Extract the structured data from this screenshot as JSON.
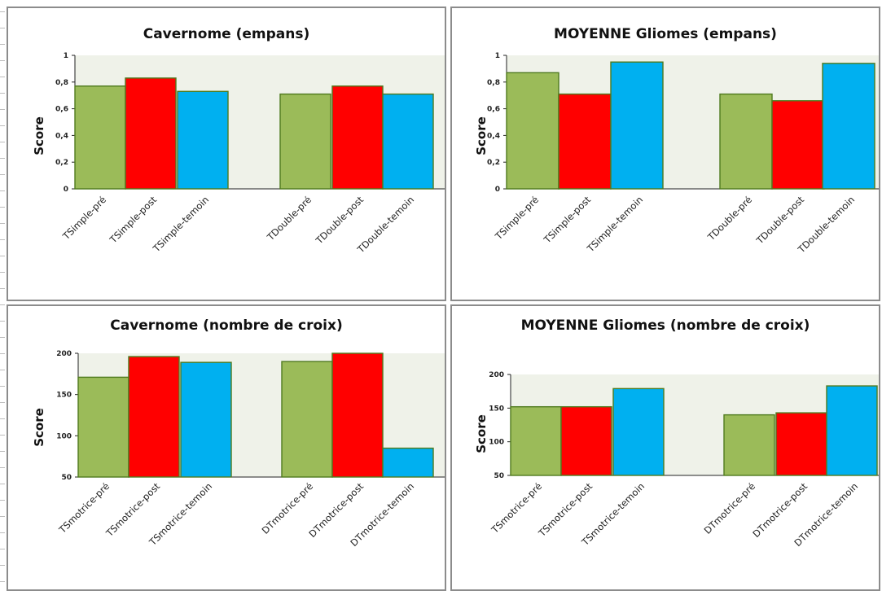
{
  "palette": {
    "pre": "#9bbb59",
    "post": "#ff0000",
    "temoin": "#00b0f0",
    "plot_bg": "#eff2e9",
    "bar_outline": "#4f7a1e"
  },
  "charts": [
    {
      "id": "c1",
      "chart_data": {
        "type": "bar",
        "title": "Cavernome (empans)",
        "ylabel": "Score",
        "ylim": [
          0,
          1
        ],
        "yticks": [
          "0",
          "0,2",
          "0,4",
          "0,6",
          "0,8",
          "1"
        ],
        "categories": [
          "TSimple-pré",
          "TSimple-post",
          "TSimple-temoin",
          "TDouble-pré",
          "TDouble-post",
          "TDouble-temoin"
        ],
        "values": [
          0.77,
          0.83,
          0.73,
          0.71,
          0.77,
          0.71
        ],
        "colors": [
          "pre",
          "post",
          "temoin",
          "pre",
          "post",
          "temoin"
        ]
      }
    },
    {
      "id": "c2",
      "chart_data": {
        "type": "bar",
        "title": "MOYENNE Gliomes (empans)",
        "ylabel": "Score",
        "ylim": [
          0,
          1
        ],
        "yticks": [
          "0",
          "0,2",
          "0,4",
          "0,6",
          "0,8",
          "1"
        ],
        "categories": [
          "TSimple-pré",
          "TSimple-post",
          "TSimple-temoin",
          "TDouble-pré",
          "TDouble-post",
          "TDouble-temoin"
        ],
        "values": [
          0.87,
          0.71,
          0.95,
          0.71,
          0.66,
          0.94
        ],
        "colors": [
          "pre",
          "post",
          "temoin",
          "pre",
          "post",
          "temoin"
        ]
      }
    },
    {
      "id": "c3",
      "chart_data": {
        "type": "bar",
        "title": "Cavernome (nombre de croix)",
        "ylabel": "Score",
        "ylim": [
          50,
          200
        ],
        "yticks": [
          "50",
          "100",
          "150",
          "200"
        ],
        "categories": [
          "TSmotrice-pré",
          "TSmotrice-post",
          "TSmotrice-temoin",
          "DTmotrice-pré",
          "DTmotrice-post",
          "DTmotrice-temoin"
        ],
        "values": [
          171,
          196,
          189,
          190,
          200,
          85
        ],
        "colors": [
          "pre",
          "post",
          "temoin",
          "pre",
          "post",
          "temoin"
        ]
      }
    },
    {
      "id": "c4",
      "chart_data": {
        "type": "bar",
        "title": "MOYENNE Gliomes (nombre de croix)",
        "ylabel": "Score",
        "ylim": [
          50,
          200
        ],
        "yticks": [
          "50",
          "100",
          "150",
          "200"
        ],
        "categories": [
          "TSmotrice-pré",
          "TSmotrice-post",
          "TSmotrice-temoin",
          "DTmotrice-pré",
          "DTmotrice-post",
          "DTmotrice-temoin"
        ],
        "values": [
          152,
          152,
          179,
          140,
          143,
          183
        ],
        "colors": [
          "pre",
          "post",
          "temoin",
          "pre",
          "post",
          "temoin"
        ]
      }
    }
  ]
}
